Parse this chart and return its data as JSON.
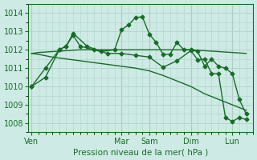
{
  "background_color": "#ceeae4",
  "grid_color": "#afd4cc",
  "line_color": "#1a6b2a",
  "vline_color": "#c8a0a0",
  "xlabel_text": "Pression niveau de la mer( hPa )",
  "ylim": [
    1007.5,
    1014.5
  ],
  "yticks": [
    1008,
    1009,
    1010,
    1011,
    1012,
    1013,
    1014
  ],
  "day_labels": [
    "Ven",
    "Mar",
    "Sam",
    "Dim",
    "Lun"
  ],
  "day_positions": [
    0,
    13,
    17,
    23,
    29
  ],
  "xlim": [
    -0.5,
    32
  ],
  "series": [
    {
      "x": [
        0,
        1,
        3,
        5,
        7,
        9,
        11,
        13,
        15,
        17,
        19,
        21,
        23,
        25,
        27,
        29,
        31
      ],
      "y": [
        1011.8,
        1011.85,
        1011.9,
        1011.95,
        1012.0,
        1012.0,
        1012.0,
        1012.0,
        1012.0,
        1012.0,
        1012.0,
        1012.0,
        1012.0,
        1011.95,
        1011.9,
        1011.85,
        1011.8
      ],
      "marker": null,
      "linewidth": 1.0
    },
    {
      "x": [
        0,
        1,
        3,
        5,
        7,
        9,
        11,
        13,
        15,
        17,
        19,
        21,
        23,
        25,
        27,
        29,
        31
      ],
      "y": [
        1011.8,
        1011.75,
        1011.6,
        1011.5,
        1011.4,
        1011.3,
        1011.2,
        1011.1,
        1011.0,
        1010.85,
        1010.6,
        1010.3,
        1010.0,
        1009.6,
        1009.3,
        1009.0,
        1008.7
      ],
      "marker": null,
      "linewidth": 1.0
    },
    {
      "x": [
        0,
        2,
        4,
        5,
        6,
        8,
        10,
        12,
        13,
        14,
        15,
        16,
        17,
        18,
        19,
        20,
        21,
        22,
        23,
        24,
        25,
        26,
        27,
        28,
        29,
        30,
        31
      ],
      "y": [
        1010.0,
        1010.5,
        1012.0,
        1012.2,
        1012.9,
        1012.2,
        1011.9,
        1012.0,
        1013.1,
        1013.35,
        1013.75,
        1013.8,
        1012.85,
        1012.4,
        1011.75,
        1011.75,
        1012.4,
        1012.0,
        1012.0,
        1011.9,
        1011.1,
        1011.5,
        1011.1,
        1011.0,
        1010.7,
        1009.3,
        1008.5
      ],
      "marker": "D",
      "markersize": 2.5,
      "linewidth": 1.0
    },
    {
      "x": [
        0,
        2,
        4,
        5,
        6,
        7,
        9,
        11,
        13,
        15,
        17,
        19,
        21,
        23,
        24,
        25,
        26,
        27,
        28,
        29,
        30,
        31
      ],
      "y": [
        1010.0,
        1011.0,
        1012.0,
        1012.2,
        1012.8,
        1012.2,
        1012.0,
        1011.8,
        1011.8,
        1011.7,
        1011.6,
        1011.05,
        1011.4,
        1011.95,
        1011.45,
        1011.5,
        1010.7,
        1010.7,
        1008.3,
        1008.1,
        1008.3,
        1008.2
      ],
      "marker": "D",
      "markersize": 2.5,
      "linewidth": 1.0
    }
  ]
}
